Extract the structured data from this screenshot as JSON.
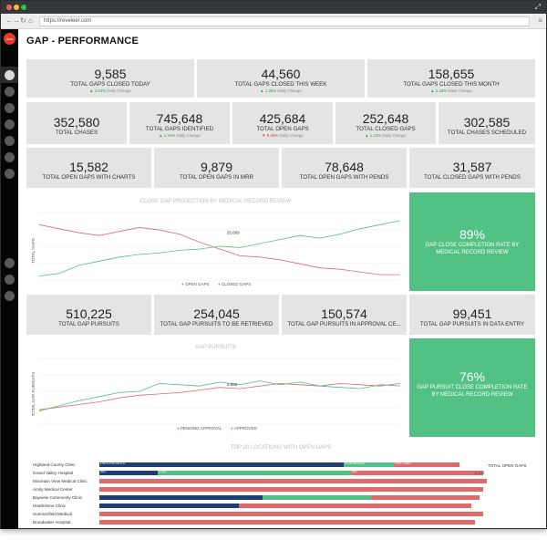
{
  "browser": {
    "url": "https://reveleer.com"
  },
  "colors": {
    "sidebar": "#050505",
    "card_bg": "#e4e4e4",
    "green": "#52c184",
    "red": "#e06b6b",
    "navy": "#1d3f74",
    "logo": "#e23b2e"
  },
  "page": {
    "title": "GAP - PERFORMANCE"
  },
  "row1": [
    {
      "value": "9,585",
      "label": "TOTAL GAPS CLOSED TODAY",
      "change": "1.24%",
      "change_label": "Daily Change",
      "dir": "up"
    },
    {
      "value": "44,560",
      "label": "TOTAL GAPS CLOSED THIS WEEK",
      "change": "1.35%",
      "change_label": "Daily Change",
      "dir": "up"
    },
    {
      "value": "158,655",
      "label": "TOTAL GAPS CLOSED THIS MONTH",
      "change": "2.18%",
      "change_label": "Daily Change",
      "dir": "up"
    }
  ],
  "row2": [
    {
      "value": "352,580",
      "label": "TOTAL CHASES"
    },
    {
      "value": "745,648",
      "label": "TOTAL GAPS IDENTIFIED",
      "change": "1.24%",
      "change_label": "Daily Change",
      "dir": "up"
    },
    {
      "value": "425,684",
      "label": "TOTAL OPEN GAPS",
      "change": "0.45%",
      "change_label": "Daily Change",
      "dir": "down"
    },
    {
      "value": "252,648",
      "label": "TOTAL CLOSED GAPS",
      "change": "1.24%",
      "change_label": "Daily Change",
      "dir": "up"
    },
    {
      "value": "302,585",
      "label": "TOTAL CHASES SCHEDULED"
    }
  ],
  "row3": [
    {
      "value": "15,582",
      "label": "TOTAL OPEN GAPS WITH CHARTS"
    },
    {
      "value": "9,879",
      "label": "TOTAL OPEN GAPS IN MRR"
    },
    {
      "value": "78,648",
      "label": "TOTAL OPEN GAPS WITH PENDS"
    },
    {
      "value": "31,587",
      "label": "TOTAL CLOSED GAPS WITH PENDS"
    }
  ],
  "row4": [
    {
      "value": "510,225",
      "label": "TOTAL GAP PURSUITS"
    },
    {
      "value": "254,045",
      "label": "TOTAL GAP PURSUITS TO BE RETRIEVED"
    },
    {
      "value": "150,574",
      "label": "TOTAL GAP PURSUITS IN APPROVAL CE..."
    },
    {
      "value": "99,451",
      "label": "TOTAL GAP PURSUITS IN DATA ENTRY"
    }
  ],
  "green1": {
    "value": "89%",
    "label": "GAP CLOSE COMPLETION RATE BY MEDICAL RECORD REVIEW"
  },
  "green2": {
    "value": "76%",
    "label": "GAP PURSUIT CLOSE COMPLETION RATE BY MEDICAL RECORD REVIEW"
  },
  "chart_data": [
    {
      "type": "line",
      "title": "CLOSE GAP PROJECTION BY MEDICAL RECORD REVIEW",
      "ylabel": "TOTAL GAPS",
      "xlabel": "",
      "ylim": [
        0,
        100
      ],
      "annotation": "25,689",
      "series": [
        {
          "name": "OPEN GAPS",
          "color": "#e06b6b",
          "values": [
            82,
            76,
            70,
            66,
            72,
            78,
            74,
            68,
            56,
            46,
            36,
            34,
            30,
            24,
            18,
            16,
            12,
            8,
            8
          ]
        },
        {
          "name": "CLOSED GAPS",
          "color": "#52c184",
          "values": [
            6,
            10,
            22,
            28,
            34,
            38,
            40,
            44,
            46,
            50,
            48,
            54,
            60,
            66,
            62,
            68,
            76,
            82,
            88
          ]
        }
      ]
    },
    {
      "type": "line",
      "title": "GAP PURSUITS",
      "ylabel": "TOTAL GAP PURSUITS",
      "xlabel": "",
      "ylim": [
        0,
        100
      ],
      "annotation": "2,585",
      "series": [
        {
          "name": "PENDING APPROVAL",
          "color": "#e06b6b",
          "values": [
            22,
            26,
            30,
            34,
            40,
            44,
            46,
            48,
            52,
            56,
            54,
            58,
            62,
            60,
            58,
            62,
            60,
            58,
            62
          ]
        },
        {
          "name": "APPROVED",
          "color": "#52c184",
          "values": [
            20,
            28,
            36,
            42,
            48,
            50,
            62,
            60,
            58,
            64,
            60,
            66,
            60,
            64,
            58,
            56,
            54,
            60,
            58
          ]
        }
      ]
    },
    {
      "type": "bar",
      "title": "TOP 20 LOCATIONS WITH OPEN GAPS",
      "orientation": "horizontal",
      "stacked": true,
      "legend_title": "TOTAL OPEN GAPS",
      "axis_value": "6,215",
      "segment_names": [
        "UNSCHEDULED",
        "SCHEDULED",
        "PAST DUE"
      ],
      "categories": [
        "Highland County Clinic",
        "Grand Valley Hospital",
        "Mountain View Medical Clinic",
        "Amity Medical Center",
        "Bayview Community Clinic",
        "Heathstone Clinic",
        "Summerfield Medical",
        "Broadwater Hospital"
      ],
      "series": [
        {
          "name": "navy",
          "color": "#1d3f74",
          "values": [
            63,
            15,
            0,
            0,
            42,
            36,
            0,
            0
          ]
        },
        {
          "name": "green",
          "color": "#52c184",
          "values": [
            13,
            50,
            0,
            0,
            28,
            0,
            0,
            0
          ]
        },
        {
          "name": "red",
          "color": "#e06b6b",
          "values": [
            17,
            34,
            100,
            99,
            28,
            60,
            99,
            97
          ]
        }
      ],
      "segment_labels": [
        [
          "UNSCHEDULED",
          "SCHEDULED",
          "PAST DUE"
        ],
        [
          "561",
          "4,547",
          "687"
        ],
        [],
        [],
        [],
        [],
        [],
        []
      ]
    }
  ]
}
